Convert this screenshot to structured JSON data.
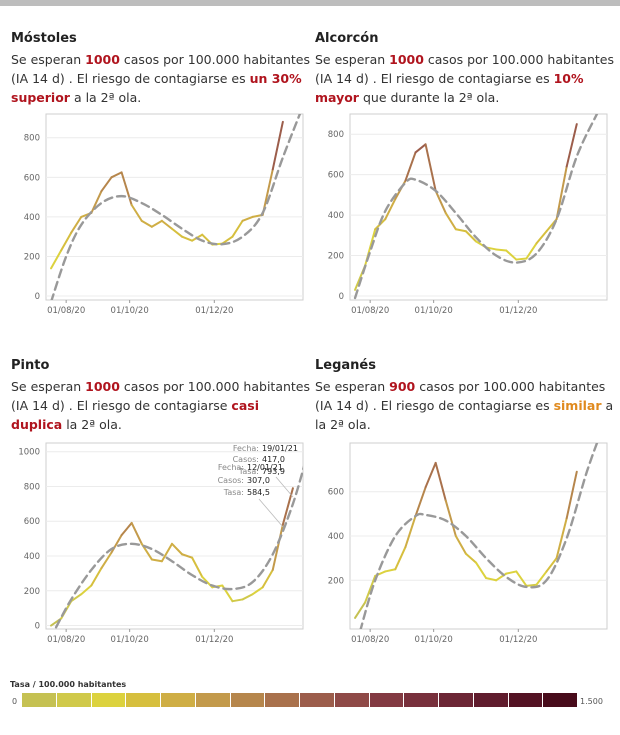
{
  "panels": [
    {
      "id": "mostoles",
      "title": "Móstoles",
      "desc_before": "Se esperan ",
      "cases": "1000",
      "desc_mid": " casos por 100.000 habitantes (IA 14 d) . El riesgo de contagiarse es ",
      "risk": "un 30% superior",
      "desc_after": " a la 2ª ola.",
      "risk_color": "#b0141e"
    },
    {
      "id": "alcorcon",
      "title": "Alcorcón",
      "desc_before": "Se esperan ",
      "cases": "1000",
      "desc_mid": " casos por 100.000 habitantes (IA 14 d) . El riesgo de contagiarse es ",
      "risk": "10% mayor",
      "desc_after": " que durante la 2ª ola.",
      "risk_color": "#b0141e"
    },
    {
      "id": "pinto",
      "title": "Pinto",
      "desc_before": "Se esperan ",
      "cases": "1000",
      "desc_mid": " casos por 100.000 habitantes (IA 14 d) . El riesgo de contagiarse ",
      "risk": "casi duplica",
      "desc_after": " la 2ª ola.",
      "risk_color": "#b0141e"
    },
    {
      "id": "leganes",
      "title": "Leganés",
      "desc_before": "Se esperan ",
      "cases": "900",
      "desc_mid": " casos por 100.000 habitantes (IA 14 d) . El riesgo de contagiarse es ",
      "risk": "similar",
      "desc_after": " a la 2ª ola.",
      "risk_color": "#e08a1e"
    }
  ],
  "cases_color": "#b0141e",
  "tooltips": [
    {
      "fecha_label": "Fecha:",
      "fecha": "19/01/21",
      "casos_label": "Casos:",
      "casos": "417,0",
      "tasa_label": "Tasa:",
      "tasa": "793,9"
    },
    {
      "fecha_label": "Fecha:",
      "fecha": "12/01/21",
      "casos_label": "Casos:",
      "casos": "307,0",
      "tasa_label": "Tasa:",
      "tasa": "584,5"
    }
  ],
  "legend": {
    "title": "Tasa / 100.000 habitantes",
    "min": "0",
    "max": "1.500",
    "colors": [
      "#c5c152",
      "#d0c94a",
      "#dcd23e",
      "#d6bf3e",
      "#cfae45",
      "#c39a4b",
      "#b6864c",
      "#a9714c",
      "#9c5d4b",
      "#8f4a47",
      "#833a42",
      "#78303c",
      "#6c2635",
      "#601c2d",
      "#541324",
      "#480b1b"
    ]
  },
  "chart_data": [
    {
      "type": "line",
      "chart": "mostoles",
      "x_ticks": [
        "01/08/20",
        "01/10/20",
        "01/12/20"
      ],
      "y_ticks": [
        0,
        200,
        400,
        600,
        800
      ],
      "ylim": [
        -20,
        920
      ],
      "xlim": [
        -0.5,
        25
      ],
      "series": [
        {
          "values": [
            [
              0,
              140
            ],
            [
              1,
              230
            ],
            [
              2,
              320
            ],
            [
              3,
              400
            ],
            [
              4,
              420
            ],
            [
              5,
              530
            ],
            [
              6,
              600
            ],
            [
              7,
              625
            ],
            [
              8,
              460
            ],
            [
              9,
              380
            ],
            [
              10,
              350
            ],
            [
              11,
              380
            ],
            [
              12,
              340
            ],
            [
              13,
              300
            ],
            [
              14,
              280
            ],
            [
              15,
              310
            ],
            [
              16,
              260
            ],
            [
              17,
              265
            ],
            [
              18,
              300
            ],
            [
              19,
              380
            ],
            [
              20,
              400
            ],
            [
              21,
              410
            ],
            [
              22,
              640
            ],
            [
              23,
              880
            ]
          ]
        }
      ],
      "trend": [
        [
          0,
          -30
        ],
        [
          1.5,
          200
        ],
        [
          3,
          360
        ],
        [
          5,
          470
        ],
        [
          7,
          505
        ],
        [
          9,
          470
        ],
        [
          11,
          410
        ],
        [
          13,
          340
        ],
        [
          15,
          280
        ],
        [
          17,
          262
        ],
        [
          19,
          300
        ],
        [
          21,
          420
        ],
        [
          23,
          700
        ],
        [
          25,
          960
        ]
      ]
    },
    {
      "type": "line",
      "chart": "alcorcon",
      "x_ticks": [
        "01/08/20",
        "01/10/20",
        "01/12/20"
      ],
      "y_ticks": [
        0,
        200,
        400,
        600,
        800
      ],
      "ylim": [
        -20,
        900
      ],
      "xlim": [
        -0.5,
        25
      ],
      "series": [
        {
          "values": [
            [
              0,
              30
            ],
            [
              1,
              150
            ],
            [
              2,
              330
            ],
            [
              3,
              380
            ],
            [
              4,
              480
            ],
            [
              5,
              570
            ],
            [
              6,
              710
            ],
            [
              7,
              750
            ],
            [
              8,
              520
            ],
            [
              9,
              410
            ],
            [
              10,
              330
            ],
            [
              11,
              320
            ],
            [
              12,
              270
            ],
            [
              13,
              240
            ],
            [
              14,
              230
            ],
            [
              15,
              225
            ],
            [
              16,
              180
            ],
            [
              17,
              185
            ],
            [
              18,
              260
            ],
            [
              19,
              320
            ],
            [
              20,
              380
            ],
            [
              21,
              640
            ],
            [
              22,
              850
            ]
          ]
        }
      ],
      "trend": [
        [
          0,
          -10
        ],
        [
          1.5,
          220
        ],
        [
          3,
          420
        ],
        [
          5,
          560
        ],
        [
          6,
          575
        ],
        [
          8,
          520
        ],
        [
          10,
          410
        ],
        [
          12,
          290
        ],
        [
          14,
          200
        ],
        [
          16,
          165
        ],
        [
          18,
          210
        ],
        [
          20,
          380
        ],
        [
          22,
          690
        ],
        [
          24,
          900
        ]
      ]
    },
    {
      "type": "line",
      "chart": "pinto",
      "x_ticks": [
        "01/08/20",
        "01/10/20",
        "01/12/20"
      ],
      "y_ticks": [
        0,
        200,
        400,
        600,
        800,
        1000
      ],
      "ylim": [
        -20,
        1050
      ],
      "xlim": [
        -0.5,
        25
      ],
      "series": [
        {
          "values": [
            [
              0,
              0
            ],
            [
              1,
              40
            ],
            [
              2,
              140
            ],
            [
              3,
              180
            ],
            [
              4,
              230
            ],
            [
              5,
              330
            ],
            [
              6,
              420
            ],
            [
              7,
              520
            ],
            [
              8,
              590
            ],
            [
              9,
              470
            ],
            [
              10,
              380
            ],
            [
              11,
              370
            ],
            [
              12,
              470
            ],
            [
              13,
              410
            ],
            [
              14,
              390
            ],
            [
              15,
              280
            ],
            [
              16,
              220
            ],
            [
              17,
              230
            ],
            [
              18,
              140
            ],
            [
              19,
              150
            ],
            [
              20,
              180
            ],
            [
              21,
              220
            ],
            [
              22,
              320
            ],
            [
              23,
              580
            ],
            [
              24,
              790
            ]
          ]
        }
      ],
      "trend": [
        [
          0.5,
          -10
        ],
        [
          2,
          150
        ],
        [
          4,
          320
        ],
        [
          6,
          440
        ],
        [
          8,
          470
        ],
        [
          10,
          440
        ],
        [
          12,
          370
        ],
        [
          14,
          290
        ],
        [
          16,
          230
        ],
        [
          18,
          210
        ],
        [
          20,
          250
        ],
        [
          22,
          410
        ],
        [
          24,
          700
        ],
        [
          25.5,
          1000
        ]
      ]
    },
    {
      "type": "line",
      "chart": "leganes",
      "x_ticks": [
        "01/08/20",
        "01/10/20",
        "01/12/20"
      ],
      "y_ticks": [
        200,
        400,
        600
      ],
      "ylim": [
        -20,
        820
      ],
      "xlim": [
        -0.5,
        25
      ],
      "series": [
        {
          "values": [
            [
              0,
              30
            ],
            [
              1,
              100
            ],
            [
              2,
              220
            ],
            [
              3,
              240
            ],
            [
              4,
              250
            ],
            [
              5,
              350
            ],
            [
              6,
              490
            ],
            [
              7,
              620
            ],
            [
              8,
              730
            ],
            [
              9,
              560
            ],
            [
              10,
              400
            ],
            [
              11,
              320
            ],
            [
              12,
              280
            ],
            [
              13,
              210
            ],
            [
              14,
              200
            ],
            [
              15,
              230
            ],
            [
              16,
              240
            ],
            [
              17,
              175
            ],
            [
              18,
              180
            ],
            [
              19,
              240
            ],
            [
              20,
              300
            ],
            [
              21,
              480
            ],
            [
              22,
              690
            ]
          ]
        }
      ],
      "trend": [
        [
          0.5,
          -30
        ],
        [
          2,
          200
        ],
        [
          4,
          400
        ],
        [
          6,
          490
        ],
        [
          7,
          495
        ],
        [
          9,
          470
        ],
        [
          11,
          400
        ],
        [
          13,
          300
        ],
        [
          15,
          215
        ],
        [
          17,
          170
        ],
        [
          19,
          200
        ],
        [
          21,
          390
        ],
        [
          23,
          690
        ],
        [
          24.5,
          880
        ]
      ]
    }
  ]
}
